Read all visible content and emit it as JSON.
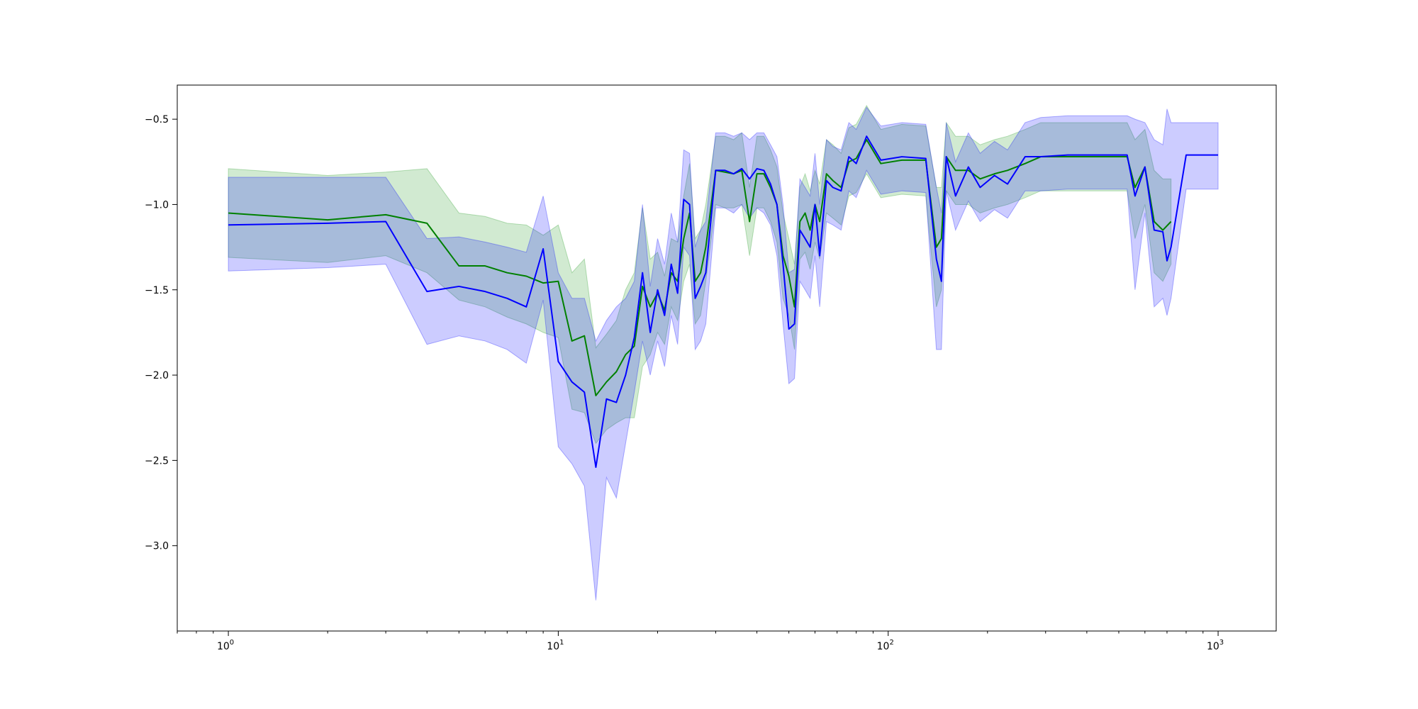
{
  "chart_data": {
    "type": "line",
    "title": "",
    "xlabel": "",
    "ylabel": "",
    "xscale": "log",
    "xlim": [
      0.7,
      1500
    ],
    "ylim": [
      -3.5,
      -0.3
    ],
    "grid": false,
    "x_ticks": [
      {
        "value": 1,
        "base": "10",
        "exp": "0"
      },
      {
        "value": 10,
        "base": "10",
        "exp": "1"
      },
      {
        "value": 100,
        "base": "10",
        "exp": "2"
      },
      {
        "value": 1000,
        "base": "10",
        "exp": "3"
      }
    ],
    "y_ticks": [
      {
        "value": -0.5,
        "label": "−0.5"
      },
      {
        "value": -1.0,
        "label": "−1.0"
      },
      {
        "value": -1.5,
        "label": "−1.5"
      },
      {
        "value": -2.0,
        "label": "−2.0"
      },
      {
        "value": -2.5,
        "label": "−2.5"
      },
      {
        "value": -3.0,
        "label": "−3.0"
      }
    ],
    "series": [
      {
        "color": "#008000",
        "band_color": "#2ca02c",
        "band_opacity": 0.22,
        "x": [
          1,
          2,
          3,
          4,
          5,
          6,
          7,
          8,
          9,
          10,
          11,
          12,
          13,
          14,
          15,
          16,
          17,
          18,
          19,
          20,
          21,
          22,
          23,
          24,
          25,
          26,
          27,
          28,
          30,
          32,
          34,
          36,
          38,
          40,
          42,
          44,
          46,
          48,
          50,
          52,
          54,
          56,
          58,
          60,
          62,
          65,
          68,
          72,
          76,
          80,
          86,
          95,
          110,
          130,
          140,
          145,
          150,
          160,
          175,
          190,
          210,
          230,
          260,
          290,
          350,
          450,
          530,
          560,
          600,
          640,
          680,
          720
        ],
        "y": [
          -1.05,
          -1.09,
          -1.06,
          -1.11,
          -1.36,
          -1.36,
          -1.4,
          -1.42,
          -1.46,
          -1.45,
          -1.8,
          -1.77,
          -2.12,
          -2.04,
          -1.98,
          -1.88,
          -1.83,
          -1.48,
          -1.6,
          -1.52,
          -1.62,
          -1.4,
          -1.45,
          -1.2,
          -1.05,
          -1.45,
          -1.4,
          -1.25,
          -0.8,
          -0.81,
          -0.82,
          -0.8,
          -1.1,
          -0.82,
          -0.82,
          -0.9,
          -1.0,
          -1.3,
          -1.42,
          -1.6,
          -1.1,
          -1.05,
          -1.15,
          -1.0,
          -1.1,
          -0.82,
          -0.86,
          -0.9,
          -0.75,
          -0.73,
          -0.62,
          -0.76,
          -0.74,
          -0.74,
          -1.25,
          -1.2,
          -0.72,
          -0.8,
          -0.8,
          -0.85,
          -0.82,
          -0.8,
          -0.76,
          -0.72,
          -0.72,
          -0.72,
          -0.72,
          -0.9,
          -0.78,
          -1.1,
          -1.15,
          -1.1
        ],
        "lower": [
          -1.31,
          -1.34,
          -1.3,
          -1.4,
          -1.56,
          -1.6,
          -1.66,
          -1.7,
          -1.75,
          -1.78,
          -2.2,
          -2.22,
          -2.4,
          -2.32,
          -2.28,
          -2.25,
          -2.25,
          -1.95,
          -1.88,
          -1.75,
          -1.82,
          -1.6,
          -1.68,
          -1.45,
          -1.35,
          -1.7,
          -1.65,
          -1.45,
          -1.0,
          -1.02,
          -1.02,
          -1.0,
          -1.3,
          -1.02,
          -1.02,
          -1.1,
          -1.22,
          -1.55,
          -1.65,
          -1.85,
          -1.32,
          -1.28,
          -1.38,
          -1.22,
          -1.32,
          -1.05,
          -1.08,
          -1.12,
          -0.95,
          -0.93,
          -0.82,
          -0.96,
          -0.94,
          -0.95,
          -1.6,
          -1.5,
          -0.92,
          -1.0,
          -1.0,
          -1.05,
          -1.02,
          -1.0,
          -0.96,
          -0.92,
          -0.92,
          -0.92,
          -0.92,
          -1.2,
          -1.0,
          -1.4,
          -1.45,
          -1.35
        ],
        "upper": [
          -0.79,
          -0.83,
          -0.81,
          -0.79,
          -1.05,
          -1.07,
          -1.11,
          -1.12,
          -1.18,
          -1.12,
          -1.4,
          -1.32,
          -1.84,
          -1.76,
          -1.68,
          -1.5,
          -1.4,
          -1.02,
          -1.32,
          -1.28,
          -1.42,
          -1.2,
          -1.22,
          -0.95,
          -0.76,
          -1.2,
          -1.15,
          -1.0,
          -0.6,
          -0.6,
          -0.62,
          -0.58,
          -0.9,
          -0.6,
          -0.6,
          -0.68,
          -0.78,
          -1.05,
          -1.2,
          -1.35,
          -0.9,
          -0.82,
          -0.92,
          -0.8,
          -0.88,
          -0.62,
          -0.65,
          -0.7,
          -0.55,
          -0.53,
          -0.42,
          -0.56,
          -0.53,
          -0.54,
          -0.9,
          -0.9,
          -0.52,
          -0.6,
          -0.6,
          -0.65,
          -0.62,
          -0.6,
          -0.56,
          -0.52,
          -0.52,
          -0.52,
          -0.52,
          -0.62,
          -0.56,
          -0.8,
          -0.85,
          -0.85
        ]
      },
      {
        "color": "#0000ff",
        "band_color": "#0000ff",
        "band_opacity": 0.2,
        "x": [
          1,
          2,
          3,
          4,
          5,
          6,
          7,
          8,
          9,
          10,
          11,
          12,
          13,
          14,
          15,
          16,
          17,
          18,
          19,
          20,
          21,
          22,
          23,
          24,
          25,
          26,
          27,
          28,
          30,
          32,
          34,
          36,
          38,
          40,
          42,
          44,
          46,
          48,
          50,
          52,
          54,
          56,
          58,
          60,
          62,
          65,
          68,
          72,
          76,
          80,
          86,
          95,
          110,
          130,
          140,
          145,
          150,
          160,
          175,
          190,
          210,
          230,
          260,
          290,
          350,
          450,
          530,
          560,
          600,
          640,
          680,
          700,
          720,
          800,
          1000
        ],
        "y": [
          -1.12,
          -1.11,
          -1.1,
          -1.51,
          -1.48,
          -1.51,
          -1.55,
          -1.6,
          -1.26,
          -1.92,
          -2.04,
          -2.1,
          -2.54,
          -2.14,
          -2.16,
          -2.0,
          -1.78,
          -1.4,
          -1.75,
          -1.5,
          -1.65,
          -1.35,
          -1.52,
          -0.97,
          -1.0,
          -1.55,
          -1.48,
          -1.4,
          -0.8,
          -0.8,
          -0.82,
          -0.79,
          -0.85,
          -0.79,
          -0.8,
          -0.88,
          -1.0,
          -1.35,
          -1.73,
          -1.7,
          -1.15,
          -1.2,
          -1.25,
          -1.0,
          -1.3,
          -0.86,
          -0.9,
          -0.92,
          -0.72,
          -0.76,
          -0.6,
          -0.74,
          -0.72,
          -0.73,
          -1.32,
          -1.45,
          -0.72,
          -0.95,
          -0.78,
          -0.9,
          -0.83,
          -0.88,
          -0.72,
          -0.72,
          -0.71,
          -0.71,
          -0.71,
          -0.95,
          -0.78,
          -1.15,
          -1.16,
          -1.33,
          -1.25,
          -0.71,
          -0.71
        ],
        "lower": [
          -1.39,
          -1.37,
          -1.35,
          -1.82,
          -1.77,
          -1.8,
          -1.85,
          -1.93,
          -1.56,
          -2.42,
          -2.52,
          -2.65,
          -3.32,
          -2.6,
          -2.72,
          -2.4,
          -2.1,
          -1.8,
          -2.0,
          -1.8,
          -1.95,
          -1.65,
          -1.82,
          -1.25,
          -1.3,
          -1.85,
          -1.8,
          -1.7,
          -1.02,
          -1.02,
          -1.05,
          -1.0,
          -1.08,
          -1.02,
          -1.05,
          -1.12,
          -1.3,
          -1.7,
          -2.05,
          -2.02,
          -1.45,
          -1.5,
          -1.55,
          -1.3,
          -1.6,
          -1.1,
          -1.12,
          -1.15,
          -0.92,
          -0.96,
          -0.8,
          -0.94,
          -0.92,
          -0.93,
          -1.85,
          -1.85,
          -0.92,
          -1.15,
          -0.98,
          -1.1,
          -1.03,
          -1.08,
          -0.92,
          -0.92,
          -0.91,
          -0.91,
          -0.91,
          -1.5,
          -1.05,
          -1.6,
          -1.55,
          -1.65,
          -1.55,
          -0.91,
          -0.91
        ],
        "upper": [
          -0.84,
          -0.84,
          -0.84,
          -1.2,
          -1.19,
          -1.22,
          -1.25,
          -1.28,
          -0.95,
          -1.4,
          -1.55,
          -1.55,
          -1.8,
          -1.68,
          -1.6,
          -1.55,
          -1.45,
          -1.0,
          -1.48,
          -1.2,
          -1.35,
          -1.05,
          -1.22,
          -0.68,
          -0.7,
          -1.25,
          -1.15,
          -1.1,
          -0.58,
          -0.58,
          -0.6,
          -0.58,
          -0.62,
          -0.58,
          -0.58,
          -0.65,
          -0.72,
          -1.0,
          -1.4,
          -1.38,
          -0.85,
          -0.9,
          -0.95,
          -0.7,
          -1.0,
          -0.62,
          -0.66,
          -0.68,
          -0.52,
          -0.56,
          -0.43,
          -0.54,
          -0.52,
          -0.53,
          -0.9,
          -1.05,
          -0.52,
          -0.75,
          -0.58,
          -0.7,
          -0.63,
          -0.68,
          -0.52,
          -0.49,
          -0.48,
          -0.48,
          -0.48,
          -0.5,
          -0.52,
          -0.62,
          -0.65,
          -0.44,
          -0.52,
          -0.52,
          -0.52
        ]
      }
    ]
  }
}
